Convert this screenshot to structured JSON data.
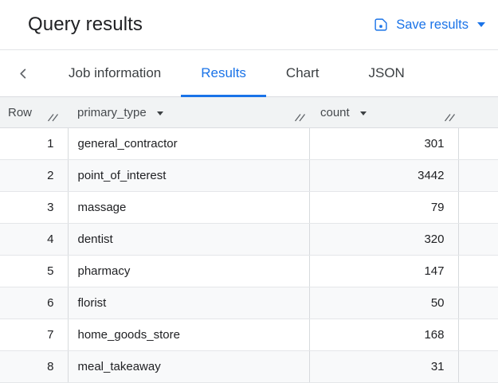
{
  "colors": {
    "accent": "#1a73e8"
  },
  "titlebar": {
    "title": "Query results",
    "save_button": {
      "icon": "save-icon",
      "label": "Save results",
      "caret_icon": "caret-down-icon"
    }
  },
  "tabbar": {
    "back_icon": "chevron-left-icon",
    "tabs": [
      {
        "label": "Job information",
        "active": false
      },
      {
        "label": "Results",
        "active": true
      },
      {
        "label": "Chart",
        "active": false
      },
      {
        "label": "JSON",
        "active": false
      }
    ]
  },
  "table": {
    "columns": [
      {
        "label": "Row",
        "sortable": false,
        "resize_icon": "column-resize-handle-icon"
      },
      {
        "label": "primary_type",
        "sortable": true,
        "sort_icon": "sort-caret-icon",
        "resize_icon": "column-resize-handle-icon"
      },
      {
        "label": "count",
        "sortable": true,
        "sort_icon": "sort-caret-icon",
        "resize_icon": "column-resize-handle-icon"
      }
    ],
    "rows": [
      {
        "row": 1,
        "primary_type": "general_contractor",
        "count": 301
      },
      {
        "row": 2,
        "primary_type": "point_of_interest",
        "count": 3442
      },
      {
        "row": 3,
        "primary_type": "massage",
        "count": 79
      },
      {
        "row": 4,
        "primary_type": "dentist",
        "count": 320
      },
      {
        "row": 5,
        "primary_type": "pharmacy",
        "count": 147
      },
      {
        "row": 6,
        "primary_type": "florist",
        "count": 50
      },
      {
        "row": 7,
        "primary_type": "home_goods_store",
        "count": 168
      },
      {
        "row": 8,
        "primary_type": "meal_takeaway",
        "count": 31
      }
    ]
  }
}
